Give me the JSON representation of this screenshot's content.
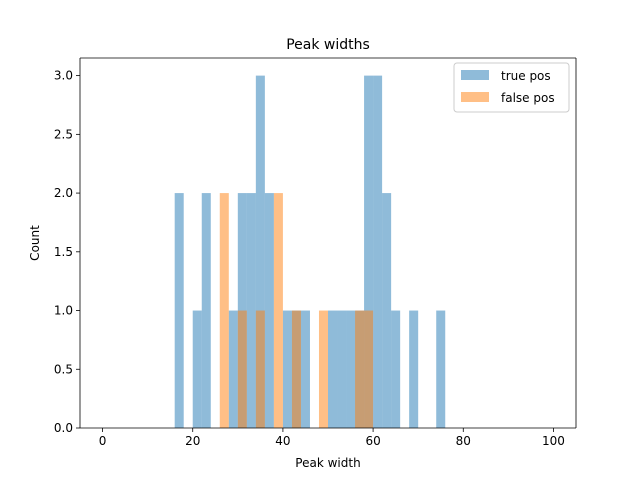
{
  "chart_data": {
    "type": "bar",
    "title": "Peak widths",
    "xlabel": "Peak width",
    "ylabel": "Count",
    "xlim": [
      -5,
      105
    ],
    "ylim": [
      0,
      3.15
    ],
    "xticks": [
      0,
      20,
      40,
      60,
      80,
      100
    ],
    "yticks": [
      0.0,
      0.5,
      1.0,
      1.5,
      2.0,
      2.5,
      3.0
    ],
    "xtick_labels": [
      "0",
      "20",
      "40",
      "60",
      "80",
      "100"
    ],
    "ytick_labels": [
      "0.0",
      "0.5",
      "1.0",
      "1.5",
      "2.0",
      "2.5",
      "3.0"
    ],
    "bin_width": 2,
    "legend_position": "top-right",
    "series": [
      {
        "name": "true pos",
        "color": "#1f77b4",
        "alpha": 0.5,
        "bins": [
          {
            "x": 16,
            "count": 2
          },
          {
            "x": 20,
            "count": 1
          },
          {
            "x": 22,
            "count": 2
          },
          {
            "x": 28,
            "count": 1
          },
          {
            "x": 30,
            "count": 2
          },
          {
            "x": 32,
            "count": 2
          },
          {
            "x": 34,
            "count": 3
          },
          {
            "x": 36,
            "count": 2
          },
          {
            "x": 40,
            "count": 1
          },
          {
            "x": 42,
            "count": 1
          },
          {
            "x": 44,
            "count": 1
          },
          {
            "x": 50,
            "count": 1
          },
          {
            "x": 52,
            "count": 1
          },
          {
            "x": 54,
            "count": 1
          },
          {
            "x": 56,
            "count": 1
          },
          {
            "x": 58,
            "count": 3
          },
          {
            "x": 60,
            "count": 3
          },
          {
            "x": 62,
            "count": 2
          },
          {
            "x": 64,
            "count": 1
          },
          {
            "x": 68,
            "count": 1
          },
          {
            "x": 74,
            "count": 1
          }
        ]
      },
      {
        "name": "false pos",
        "color": "#ff7f0e",
        "alpha": 0.5,
        "bins": [
          {
            "x": 26,
            "count": 2
          },
          {
            "x": 30,
            "count": 1
          },
          {
            "x": 34,
            "count": 1
          },
          {
            "x": 38,
            "count": 2
          },
          {
            "x": 42,
            "count": 1
          },
          {
            "x": 48,
            "count": 1
          },
          {
            "x": 56,
            "count": 1
          },
          {
            "x": 58,
            "count": 1
          }
        ]
      }
    ]
  }
}
